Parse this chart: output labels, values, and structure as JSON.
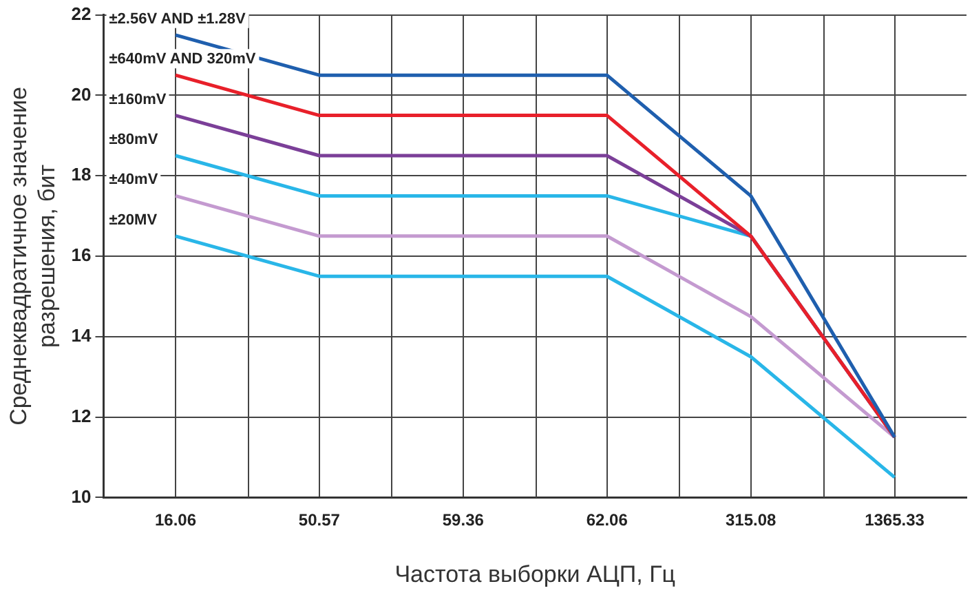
{
  "chart_data": {
    "type": "line",
    "xlabel": "Частота выборки АЦП, Гц",
    "ylabel": "Среднеквадратичное значение\nразрешения, бит",
    "categories": [
      "16.06",
      "50.57",
      "59.36",
      "62.06",
      "315.08",
      "1365.33"
    ],
    "series": [
      {
        "name": "±2.56V AND ±1.28V",
        "color": "#1f5fae",
        "values": [
          21.5,
          20.5,
          20.5,
          20.5,
          17.5,
          11.5
        ]
      },
      {
        "name": "±640mV AND 320mV",
        "color": "#e8202a",
        "values": [
          20.5,
          19.5,
          19.5,
          19.5,
          16.5,
          11.5
        ]
      },
      {
        "name": "±160mV",
        "color": "#7b3f98",
        "values": [
          19.5,
          18.5,
          18.5,
          18.5,
          16.5,
          11.5
        ]
      },
      {
        "name": "±80mV",
        "color": "#29b6e8",
        "values": [
          18.5,
          17.5,
          17.5,
          17.5,
          16.5,
          11.5
        ]
      },
      {
        "name": "±40mV",
        "color": "#c49ad0",
        "values": [
          17.5,
          16.5,
          16.5,
          16.5,
          14.5,
          11.5
        ]
      },
      {
        "name": "±20MV",
        "color": "#29b6e8",
        "values": [
          16.5,
          15.5,
          15.5,
          15.5,
          13.5,
          10.5
        ]
      }
    ],
    "ylim": [
      10,
      22
    ],
    "yticks": [
      10,
      12,
      14,
      16,
      18,
      20,
      22
    ],
    "grid": true,
    "legend": false,
    "marker": "none",
    "line_style": "solid"
  }
}
